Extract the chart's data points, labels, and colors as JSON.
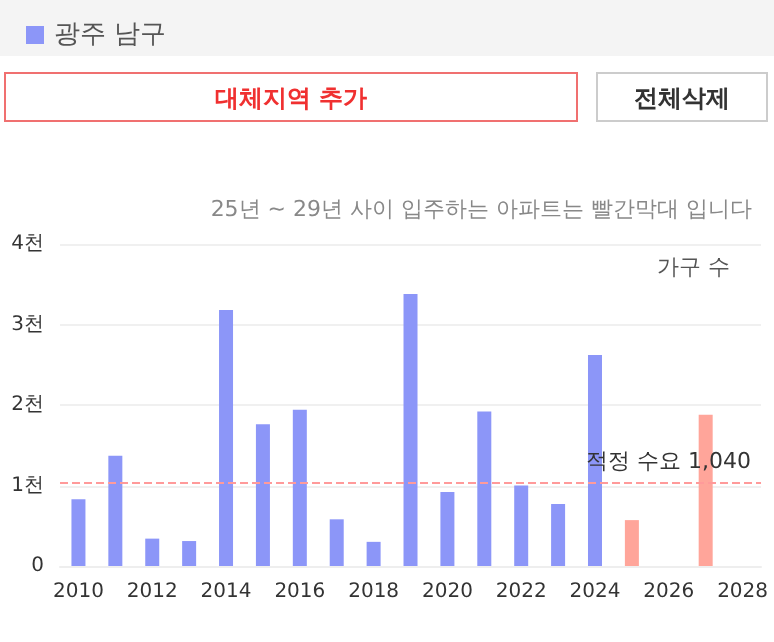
{
  "chart_data": {
    "type": "bar",
    "subtitle": "25년 ~ 29년 사이 입주하는 아파트는 빨간막대 입니다",
    "ylabel": "가구 수",
    "annotations": [
      "대체지역 추가",
      "전체삭제"
    ],
    "categories": [
      "2010",
      null,
      "2012",
      null,
      "2014",
      null,
      "2016",
      null,
      "2018",
      null,
      "2020",
      null,
      "2022",
      null,
      "2024",
      null,
      "2026",
      null,
      "2028"
    ],
    "series": [
      {
        "name": "광주 남구",
        "color": "#8c96f8",
        "values": [
          0.83,
          1.37,
          0.34,
          0.31,
          3.18,
          1.76,
          1.94,
          0.58,
          0.3,
          3.38,
          0.92,
          1.92,
          1.0,
          0.77,
          2.62,
          0.57,
          null,
          1.88,
          null
        ],
        "colors": [
          "#8c96f8",
          "#8c96f8",
          "#8c96f8",
          "#8c96f8",
          "#8c96f8",
          "#8c96f8",
          "#8c96f8",
          "#8c96f8",
          "#8c96f8",
          "#8c96f8",
          "#8c96f8",
          "#8c96f8",
          "#8c96f8",
          "#8c96f8",
          "#8c96f8",
          "#ffa59a",
          "#ffa59a",
          "#ffa59a",
          "#ffa59a"
        ]
      }
    ],
    "ylim": [
      0,
      4
    ],
    "yticks": [
      0,
      {
        "value": 1,
        "label": "1천"
      },
      {
        "value": 2,
        "label": "2천"
      },
      {
        "value": 3,
        "label": "3천"
      },
      {
        "value": 4,
        "label": "4천"
      }
    ],
    "ref_lines": [
      {
        "axis": "y",
        "value": 1.04,
        "label": "적정 수요 1,040",
        "color": "#ff9a9a",
        "line_style": "dashed"
      }
    ],
    "grid": "y",
    "legend": "top left"
  }
}
